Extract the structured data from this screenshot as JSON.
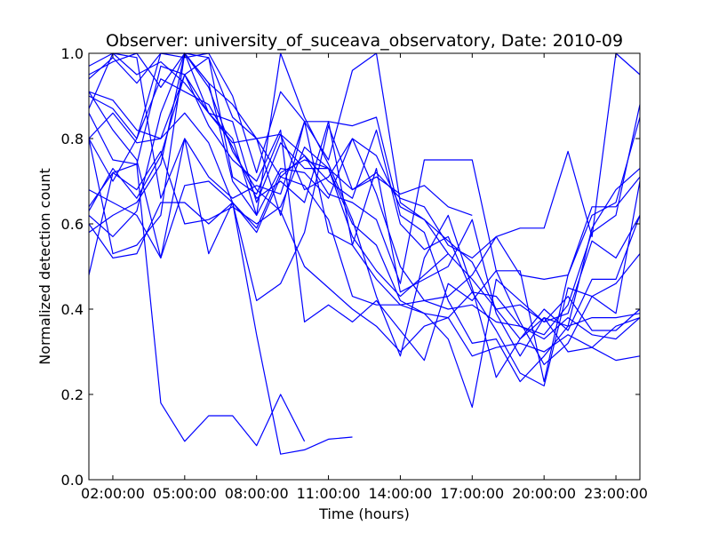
{
  "chart_data": {
    "type": "line",
    "title": "Observer: university_of_suceava_observatory, Date: 2010-09",
    "xlabel": "Time (hours)",
    "ylabel": "Normalized detection count",
    "xlim": [
      1.0,
      24.0
    ],
    "ylim": [
      0.0,
      1.0
    ],
    "x_ticks": [
      {
        "value": 2,
        "label": "02:00:00"
      },
      {
        "value": 5,
        "label": "05:00:00"
      },
      {
        "value": 8,
        "label": "08:00:00"
      },
      {
        "value": 11,
        "label": "11:00:00"
      },
      {
        "value": 14,
        "label": "14:00:00"
      },
      {
        "value": 17,
        "label": "17:00:00"
      },
      {
        "value": 20,
        "label": "20:00:00"
      },
      {
        "value": 23,
        "label": "23:00:00"
      }
    ],
    "y_ticks": [
      {
        "value": 0.0,
        "label": "0.0"
      },
      {
        "value": 0.2,
        "label": "0.2"
      },
      {
        "value": 0.4,
        "label": "0.4"
      },
      {
        "value": 0.6,
        "label": "0.6"
      },
      {
        "value": 0.8,
        "label": "0.8"
      },
      {
        "value": 1.0,
        "label": "1.0"
      }
    ],
    "grid": false,
    "line_color": "#0000ff",
    "series": [
      {
        "x": [
          1,
          2,
          3,
          4,
          5,
          6,
          7,
          8,
          9,
          10
        ],
        "y": [
          0.48,
          0.72,
          0.74,
          0.18,
          0.09,
          0.15,
          0.15,
          0.08,
          0.2,
          0.09
        ]
      },
      {
        "x": [
          1,
          2,
          3,
          4,
          5,
          6,
          7,
          8,
          9,
          10,
          11,
          12
        ],
        "y": [
          0.68,
          0.65,
          0.62,
          0.52,
          0.69,
          0.7,
          0.65,
          0.34,
          0.06,
          0.07,
          0.095,
          0.1
        ]
      },
      {
        "x": [
          1,
          2,
          3,
          4,
          5,
          6,
          7,
          8,
          9,
          10,
          11,
          12,
          13,
          14,
          15,
          16,
          17,
          18,
          19,
          20,
          21,
          22,
          23,
          24
        ],
        "y": [
          0.64,
          0.72,
          0.68,
          0.77,
          0.6,
          0.61,
          0.64,
          0.6,
          0.64,
          0.78,
          0.73,
          0.57,
          0.49,
          0.43,
          0.48,
          0.53,
          0.47,
          0.4,
          0.33,
          0.38,
          0.3,
          0.31,
          0.36,
          0.38
        ]
      },
      {
        "x": [
          1,
          2,
          3,
          4,
          5,
          6,
          7,
          8,
          9,
          10,
          11,
          12,
          13,
          14,
          15,
          16,
          17,
          18,
          19,
          20,
          21,
          22,
          23,
          24
        ],
        "y": [
          0.8,
          0.86,
          0.79,
          0.8,
          0.86,
          0.79,
          0.65,
          0.59,
          0.72,
          0.75,
          0.73,
          0.6,
          0.55,
          0.42,
          0.39,
          0.38,
          0.44,
          0.35,
          0.25,
          0.22,
          0.45,
          0.43,
          0.46,
          0.53
        ]
      },
      {
        "x": [
          1,
          2,
          3,
          4,
          5,
          6,
          7,
          8,
          9,
          10,
          11,
          12,
          13,
          14,
          15,
          16,
          17,
          18,
          19,
          20,
          21,
          22,
          23,
          24
        ],
        "y": [
          0.91,
          0.82,
          0.75,
          0.52,
          0.8,
          0.53,
          0.65,
          0.42,
          0.46,
          0.58,
          0.83,
          0.68,
          0.72,
          0.66,
          0.64,
          0.55,
          0.52,
          0.57,
          0.48,
          0.47,
          0.48,
          0.62,
          0.65,
          0.85
        ]
      },
      {
        "x": [
          1,
          2,
          3,
          4,
          5,
          6,
          7,
          8,
          9,
          10,
          11,
          12,
          13,
          14,
          15,
          16,
          17,
          18,
          19,
          20,
          21,
          22,
          23,
          24
        ],
        "y": [
          0.86,
          0.75,
          0.74,
          0.97,
          0.95,
          0.83,
          0.75,
          0.7,
          0.82,
          0.37,
          0.41,
          0.37,
          0.42,
          0.35,
          0.28,
          0.46,
          0.42,
          0.49,
          0.37,
          0.27,
          0.32,
          0.43,
          0.39,
          0.7
        ]
      },
      {
        "x": [
          1,
          2,
          3,
          4,
          5,
          6,
          7,
          8,
          9,
          10,
          11,
          12,
          13,
          14,
          15,
          16,
          17,
          18,
          19,
          20,
          21,
          22,
          23,
          24
        ],
        "y": [
          0.95,
          0.98,
          1.0,
          0.92,
          1.0,
          0.93,
          0.88,
          0.8,
          0.81,
          0.76,
          0.7,
          0.66,
          0.82,
          0.6,
          0.54,
          0.57,
          0.44,
          0.43,
          0.36,
          0.34,
          0.41,
          0.58,
          0.62,
          0.88
        ]
      },
      {
        "x": [
          1,
          2,
          3,
          4,
          5,
          6,
          7,
          8,
          9,
          10,
          11,
          12,
          13,
          14,
          15,
          16,
          17,
          18,
          19,
          20,
          21,
          22,
          23,
          24
        ],
        "y": [
          0.9,
          0.87,
          0.8,
          0.94,
          0.91,
          0.88,
          0.78,
          0.66,
          0.7,
          0.65,
          0.84,
          0.55,
          0.47,
          0.41,
          0.42,
          0.4,
          0.41,
          0.37,
          0.36,
          0.33,
          0.38,
          0.34,
          0.33,
          0.38
        ]
      },
      {
        "x": [
          1,
          2,
          3,
          4,
          5,
          6,
          7,
          8,
          9,
          10,
          11,
          12,
          13,
          14,
          15,
          16,
          17,
          18,
          19,
          20,
          21,
          22,
          23,
          24
        ],
        "y": [
          0.62,
          0.57,
          0.63,
          0.86,
          1.0,
          0.92,
          0.77,
          0.68,
          0.63,
          0.5,
          0.45,
          0.4,
          0.36,
          0.3,
          0.36,
          0.38,
          0.29,
          0.31,
          0.32,
          0.3,
          0.34,
          0.31,
          0.28,
          0.29
        ]
      },
      {
        "x": [
          1,
          2,
          3,
          4,
          5,
          6,
          7,
          8,
          9,
          10,
          11,
          12,
          13,
          14,
          15,
          16,
          17,
          18,
          19,
          20,
          21,
          22,
          23,
          24
        ],
        "y": [
          0.87,
          1.0,
          0.95,
          0.98,
          0.93,
          0.86,
          0.79,
          0.8,
          0.62,
          0.84,
          0.84,
          0.83,
          0.85,
          0.62,
          0.58,
          0.42,
          0.32,
          0.33,
          0.23,
          0.29,
          0.36,
          0.59,
          0.68,
          0.73
        ]
      },
      {
        "x": [
          1,
          2,
          3,
          4,
          5,
          6,
          7,
          8,
          9,
          10,
          11,
          12,
          13,
          14,
          15,
          16,
          17,
          18,
          19,
          20,
          21,
          22,
          23,
          24
        ],
        "y": [
          0.58,
          0.62,
          0.65,
          0.74,
          1.0,
          0.86,
          0.8,
          0.62,
          1.0,
          0.85,
          0.74,
          0.61,
          0.43,
          0.29,
          0.52,
          0.62,
          0.45,
          0.24,
          0.33,
          0.4,
          0.35,
          0.47,
          0.47,
          0.62
        ]
      },
      {
        "x": [
          1,
          2,
          3,
          4,
          5,
          6,
          7,
          8,
          9,
          10,
          11,
          12,
          13,
          14,
          15,
          16
        ],
        "y": [
          0.8,
          0.7,
          0.8,
          1.0,
          0.99,
          1.0,
          0.9,
          0.72,
          0.91,
          0.84,
          0.75,
          0.96,
          1.0,
          0.65,
          0.61,
          0.53
        ]
      },
      {
        "x": [
          1,
          2,
          3,
          4,
          5,
          6,
          7,
          8,
          9,
          10,
          11,
          12,
          13,
          14,
          15,
          16,
          17
        ],
        "y": [
          0.91,
          0.89,
          0.82,
          0.8,
          0.95,
          0.86,
          0.84,
          0.65,
          0.79,
          0.73,
          0.73,
          0.68,
          0.71,
          0.67,
          0.69,
          0.64,
          0.62
        ]
      },
      {
        "x": [
          1,
          2,
          3,
          4,
          5,
          6,
          7,
          8,
          9,
          10,
          11,
          12,
          13,
          14,
          15,
          16,
          17,
          18,
          19,
          20,
          21,
          22,
          23,
          24
        ],
        "y": [
          0.97,
          1.0,
          0.99,
          0.66,
          0.8,
          0.71,
          0.66,
          0.69,
          0.67,
          0.84,
          0.58,
          0.55,
          0.73,
          0.44,
          0.47,
          0.5,
          0.61,
          0.39,
          0.29,
          0.38,
          0.36,
          0.38,
          0.38,
          0.39
        ]
      },
      {
        "x": [
          1,
          2,
          3,
          4,
          5,
          6,
          7,
          8,
          9,
          10,
          11,
          12,
          13,
          14,
          15,
          16,
          17,
          18,
          19,
          20,
          21,
          22,
          23,
          24
        ],
        "y": [
          0.94,
          0.99,
          0.93,
          1.0,
          1.0,
          0.99,
          0.85,
          0.8,
          0.71,
          0.76,
          0.67,
          0.65,
          0.61,
          0.46,
          0.75,
          0.75,
          0.75,
          0.49,
          0.49,
          0.23,
          0.48,
          0.64,
          0.64,
          0.71
        ]
      },
      {
        "x": [
          1,
          2,
          3,
          4,
          5,
          6,
          7,
          8,
          9,
          10,
          11,
          12,
          13,
          14,
          15,
          16,
          17,
          18,
          19,
          20,
          21,
          22,
          23,
          24
        ],
        "y": [
          0.8,
          0.53,
          0.55,
          0.62,
          1.0,
          0.93,
          0.7,
          0.62,
          0.73,
          0.72,
          0.66,
          0.8,
          0.76,
          0.64,
          0.61,
          0.56,
          0.51,
          0.4,
          0.41,
          0.37,
          0.39,
          0.56,
          0.52,
          0.62
        ]
      },
      {
        "x": [
          1,
          2,
          3,
          4,
          5,
          6,
          7,
          8,
          9,
          10,
          11,
          12,
          13,
          14,
          15,
          16,
          17,
          18,
          19,
          20,
          21,
          22,
          23,
          24
        ],
        "y": [
          0.6,
          0.52,
          0.53,
          0.65,
          0.65,
          0.6,
          0.65,
          0.58,
          0.71,
          0.69,
          0.61,
          0.43,
          0.41,
          0.41,
          0.39,
          0.33,
          0.17,
          0.47,
          0.42,
          0.37,
          0.43,
          0.35,
          0.35,
          0.4
        ]
      },
      {
        "x": [
          1,
          2,
          3,
          4,
          5,
          6,
          7,
          8,
          9,
          10,
          11,
          12,
          13,
          14,
          15,
          16,
          17,
          18,
          19,
          20,
          21,
          22,
          23,
          24
        ],
        "y": [
          0.63,
          0.73,
          0.66,
          0.76,
          0.95,
          0.99,
          0.71,
          0.67,
          0.81,
          0.68,
          0.71,
          0.8,
          0.67,
          0.5,
          0.42,
          0.43,
          0.48,
          0.57,
          0.59,
          0.59,
          0.77,
          0.57,
          1.0,
          0.95
        ]
      }
    ]
  }
}
